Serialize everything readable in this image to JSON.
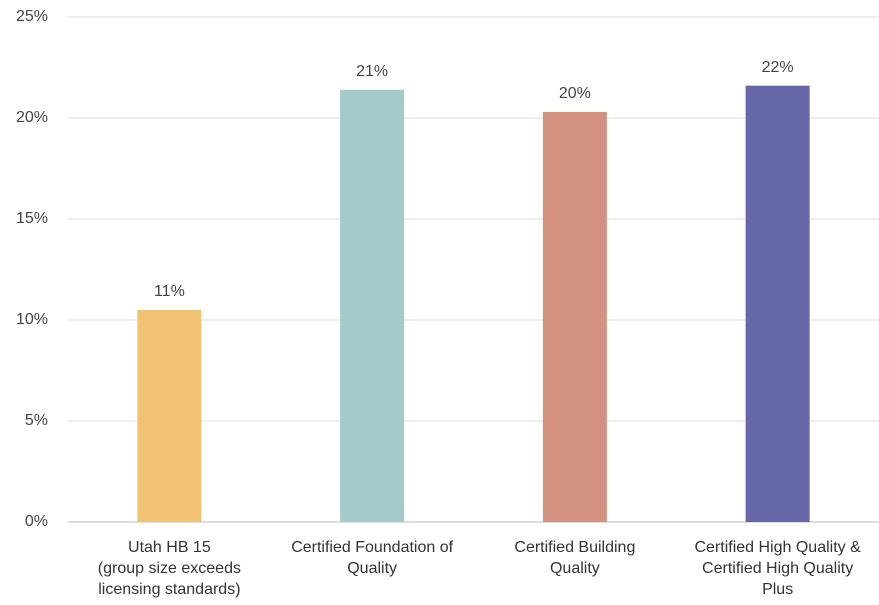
{
  "chart_data": {
    "type": "bar",
    "categories": [
      "Utah HB 15\n(group size exceeds\nlicensing standards)",
      "Certified Foundation of\nQuality",
      "Certified Building\nQuality",
      "Certified High Quality &\nCertified High Quality\nPlus"
    ],
    "values": [
      10.5,
      21.4,
      20.3,
      21.6
    ],
    "value_labels": [
      "11%",
      "21%",
      "20%",
      "22%"
    ],
    "colors": [
      "#f0c272",
      "#a3cbc9",
      "#d39280",
      "#6667a9"
    ],
    "ylim": [
      0,
      25
    ],
    "yticks": [
      {
        "value": 0,
        "label": "0%"
      },
      {
        "value": 5,
        "label": "5%"
      },
      {
        "value": 10,
        "label": "10%"
      },
      {
        "value": 15,
        "label": "15%"
      },
      {
        "value": 20,
        "label": "20%"
      },
      {
        "value": 25,
        "label": "25%"
      }
    ],
    "grid": true
  }
}
